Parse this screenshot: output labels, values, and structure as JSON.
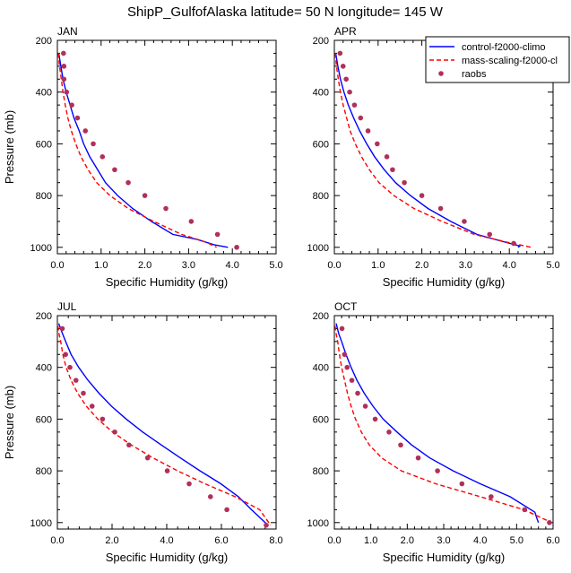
{
  "title": "ShipP_GulfofAlaska  latitude= 50 N longitude= 145 W",
  "legend": {
    "entries": [
      {
        "label": "control-f2000-climo",
        "color": "#0000ff",
        "style": "solid"
      },
      {
        "label": "mass-scaling-f2000-cl",
        "color": "#ff0000",
        "style": "dashed"
      },
      {
        "label": "raobs",
        "color": "#b0305a",
        "style": "marker"
      }
    ]
  },
  "chart_data": [
    {
      "type": "line",
      "panel": "JAN",
      "xlabel": "Specific Humidity (g/kg)",
      "ylabel": "Pressure (mb)",
      "xlim": [
        0,
        5
      ],
      "xticks": [
        0,
        1,
        2,
        3,
        4,
        5
      ],
      "xtick_labels": [
        "0.0",
        "1.0",
        "2.0",
        "3.0",
        "4.0",
        "5.0"
      ],
      "ylim": [
        200,
        1025
      ],
      "y_reversed": true,
      "yticks": [
        200,
        400,
        600,
        800,
        1000
      ],
      "series": [
        {
          "name": "control-f2000-climo",
          "x": [
            0.03,
            0.08,
            0.13,
            0.2,
            0.29,
            0.38,
            0.5,
            0.6,
            0.74,
            0.92,
            1.1,
            1.38,
            1.72,
            2.15,
            2.64,
            3.2,
            3.58,
            3.9
          ],
          "y": [
            250,
            300,
            350,
            400,
            450,
            500,
            550,
            600,
            650,
            700,
            750,
            800,
            850,
            900,
            950,
            970,
            990,
            1000
          ]
        },
        {
          "name": "mass-scaling-f2000-cl",
          "x": [
            0.02,
            0.05,
            0.09,
            0.13,
            0.18,
            0.24,
            0.32,
            0.42,
            0.54,
            0.7,
            0.9,
            1.2,
            1.62,
            2.2,
            2.84,
            3.4,
            3.64
          ],
          "y": [
            250,
            300,
            350,
            400,
            450,
            500,
            550,
            600,
            650,
            700,
            750,
            800,
            850,
            900,
            950,
            980,
            1000
          ]
        },
        {
          "name": "raobs",
          "x": [
            0.14,
            0.15,
            0.15,
            0.21,
            0.33,
            0.46,
            0.64,
            0.82,
            1.03,
            1.31,
            1.62,
            2.0,
            2.48,
            3.06,
            3.66,
            4.1
          ],
          "y": [
            250,
            300,
            350,
            400,
            450,
            500,
            550,
            600,
            650,
            700,
            750,
            800,
            850,
            900,
            950,
            1000
          ]
        }
      ]
    },
    {
      "type": "line",
      "panel": "APR",
      "xlabel": "Specific Humidity (g/kg)",
      "ylabel": "",
      "xlim": [
        0,
        5
      ],
      "xticks": [
        0,
        1,
        2,
        3,
        4,
        5
      ],
      "xtick_labels": [
        "0.0",
        "1.0",
        "2.0",
        "3.0",
        "4.0",
        "5.0"
      ],
      "ylim": [
        200,
        1025
      ],
      "y_reversed": true,
      "yticks": [
        200,
        400,
        600,
        800,
        1000
      ],
      "series": [
        {
          "name": "control-f2000-climo",
          "x": [
            0.03,
            0.08,
            0.14,
            0.22,
            0.32,
            0.44,
            0.58,
            0.74,
            0.92,
            1.14,
            1.4,
            1.74,
            2.14,
            2.66,
            3.26,
            3.9,
            4.24,
            4.2
          ],
          "y": [
            250,
            300,
            350,
            400,
            450,
            500,
            550,
            600,
            650,
            700,
            750,
            800,
            850,
            900,
            950,
            980,
            995,
            1000
          ]
        },
        {
          "name": "mass-scaling-f2000-cl",
          "x": [
            0.02,
            0.05,
            0.09,
            0.14,
            0.2,
            0.28,
            0.36,
            0.48,
            0.62,
            0.8,
            1.02,
            1.36,
            1.82,
            2.46,
            3.2,
            3.94,
            4.5
          ],
          "y": [
            250,
            300,
            350,
            400,
            450,
            500,
            550,
            600,
            650,
            700,
            750,
            800,
            850,
            900,
            950,
            980,
            1000
          ]
        },
        {
          "name": "raobs",
          "x": [
            0.13,
            0.2,
            0.27,
            0.35,
            0.46,
            0.6,
            0.77,
            0.98,
            1.2,
            1.33,
            1.6,
            2.0,
            2.43,
            2.97,
            3.55,
            4.1
          ],
          "y": [
            250,
            300,
            350,
            400,
            450,
            500,
            550,
            600,
            650,
            700,
            750,
            800,
            850,
            900,
            950,
            985
          ]
        }
      ]
    },
    {
      "type": "line",
      "panel": "JUL",
      "xlabel": "Specific Humidity (g/kg)",
      "ylabel": "Pressure (mb)",
      "xlim": [
        0,
        8
      ],
      "xticks": [
        0,
        2,
        4,
        6,
        8
      ],
      "xtick_labels": [
        "0.0",
        "2.0",
        "4.0",
        "6.0",
        "8.0"
      ],
      "ylim": [
        200,
        1025
      ],
      "y_reversed": true,
      "yticks": [
        200,
        400,
        600,
        800,
        1000
      ],
      "series": [
        {
          "name": "control-f2000-climo",
          "x": [
            0.05,
            0.15,
            0.3,
            0.5,
            0.78,
            1.12,
            1.52,
            1.98,
            2.52,
            3.12,
            3.8,
            4.5,
            5.22,
            5.98,
            6.62,
            7.1,
            7.5,
            7.7
          ],
          "y": [
            230,
            260,
            300,
            350,
            400,
            450,
            500,
            550,
            600,
            650,
            700,
            750,
            800,
            850,
            900,
            950,
            990,
            1010
          ]
        },
        {
          "name": "mass-scaling-f2000-cl",
          "x": [
            0.02,
            0.06,
            0.12,
            0.2,
            0.32,
            0.5,
            0.74,
            1.06,
            1.48,
            2.02,
            2.7,
            3.5,
            4.4,
            5.4,
            6.5,
            7.4,
            7.8
          ],
          "y": [
            240,
            270,
            300,
            350,
            400,
            450,
            500,
            550,
            600,
            650,
            700,
            750,
            800,
            850,
            900,
            950,
            1010
          ]
        },
        {
          "name": "raobs",
          "x": [
            0.18,
            0.3,
            0.46,
            0.68,
            0.95,
            1.27,
            1.65,
            2.1,
            2.62,
            3.3,
            4.02,
            4.82,
            5.6,
            6.2,
            7.64
          ],
          "y": [
            250,
            350,
            400,
            450,
            500,
            550,
            600,
            650,
            700,
            750,
            800,
            850,
            900,
            950,
            1010
          ]
        }
      ]
    },
    {
      "type": "line",
      "panel": "OCT",
      "xlabel": "Specific Humidity (g/kg)",
      "ylabel": "",
      "xlim": [
        0,
        6
      ],
      "xticks": [
        0,
        1,
        2,
        3,
        4,
        5,
        6
      ],
      "xtick_labels": [
        "0.0",
        "1.0",
        "2.0",
        "3.0",
        "4.0",
        "5.0",
        "6.0"
      ],
      "ylim": [
        200,
        1025
      ],
      "y_reversed": true,
      "yticks": [
        200,
        400,
        600,
        800,
        1000
      ],
      "series": [
        {
          "name": "control-f2000-climo",
          "x": [
            0.05,
            0.12,
            0.2,
            0.32,
            0.46,
            0.62,
            0.82,
            1.06,
            1.34,
            1.72,
            2.12,
            2.62,
            3.26,
            4.0,
            4.82,
            5.5,
            5.56,
            5.6
          ],
          "y": [
            230,
            270,
            300,
            350,
            400,
            450,
            500,
            550,
            600,
            650,
            700,
            750,
            800,
            850,
            900,
            960,
            985,
            1000
          ]
        },
        {
          "name": "mass-scaling-f2000-cl",
          "x": [
            0.02,
            0.05,
            0.09,
            0.14,
            0.2,
            0.28,
            0.36,
            0.46,
            0.58,
            0.74,
            0.96,
            1.3,
            1.84,
            2.78,
            4.0,
            5.2,
            5.96
          ],
          "y": [
            240,
            270,
            300,
            350,
            400,
            450,
            500,
            550,
            600,
            650,
            700,
            750,
            800,
            850,
            900,
            950,
            1000
          ]
        },
        {
          "name": "raobs",
          "x": [
            0.21,
            0.28,
            0.35,
            0.48,
            0.64,
            0.85,
            1.12,
            1.5,
            1.82,
            2.3,
            2.83,
            3.5,
            4.3,
            5.22,
            5.9
          ],
          "y": [
            250,
            350,
            400,
            450,
            500,
            550,
            600,
            650,
            700,
            750,
            800,
            850,
            900,
            950,
            1000
          ]
        }
      ]
    }
  ]
}
